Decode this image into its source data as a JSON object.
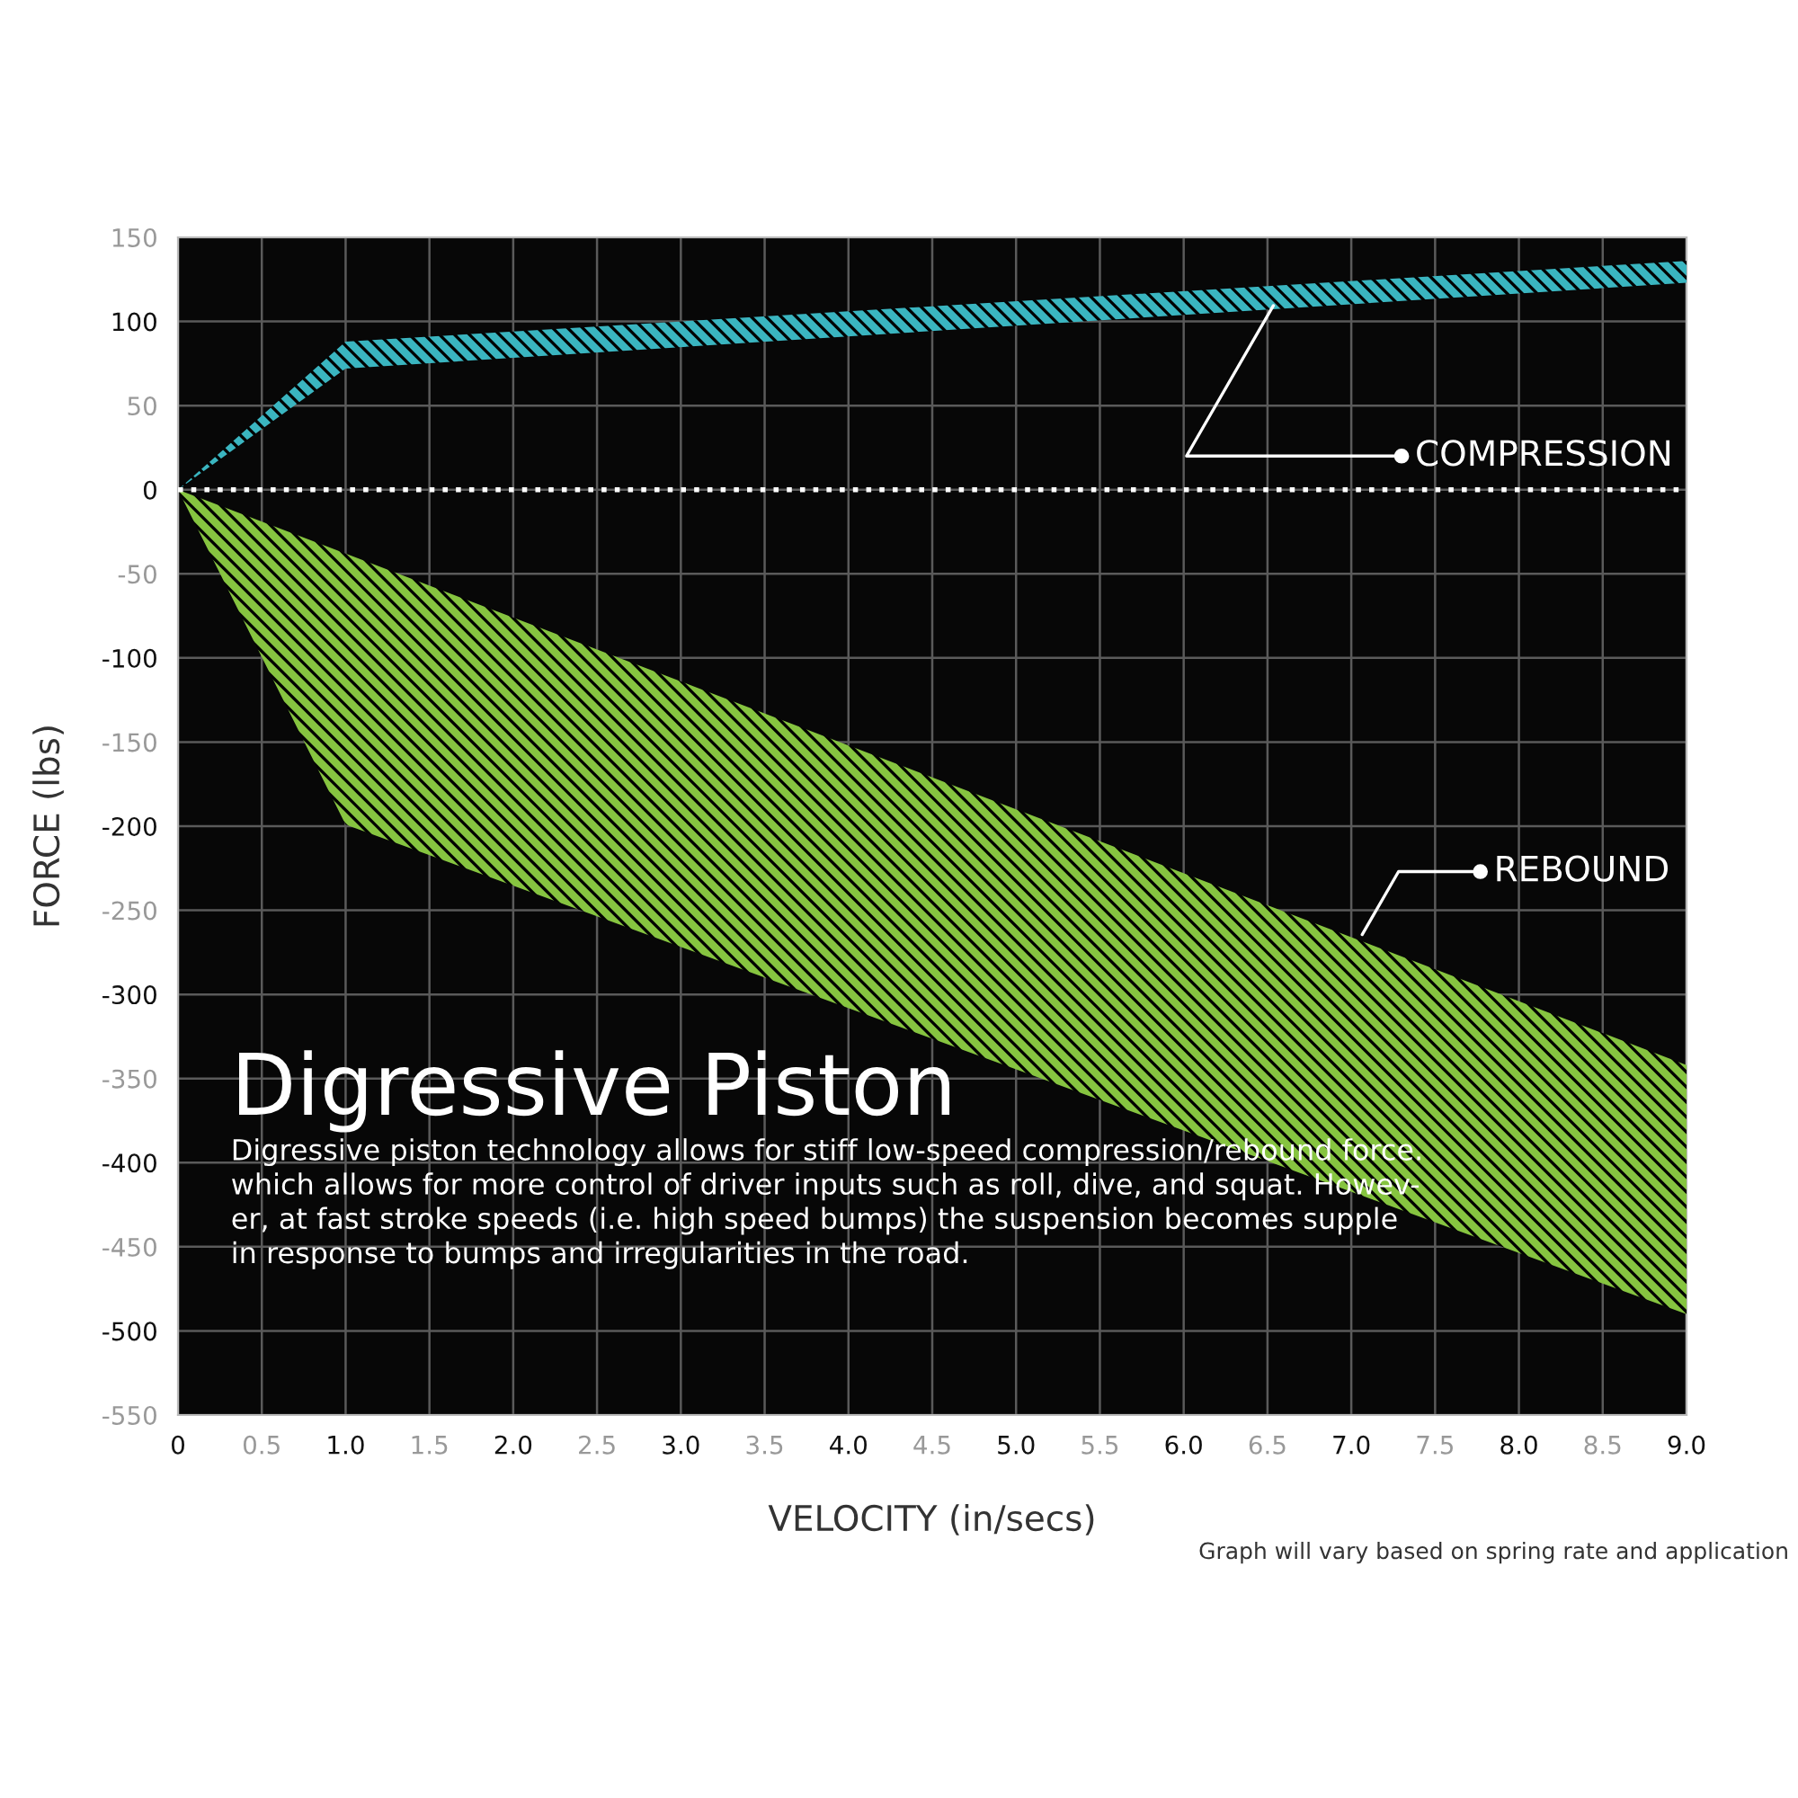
{
  "chart_data": {
    "type": "area",
    "title": "Digressive Piston",
    "xlabel": "VELOCITY (in/secs)",
    "ylabel": "FORCE (lbs)",
    "series": [
      {
        "color": "#3ab5c0",
        "x": [
          0,
          1,
          9,
          9,
          1,
          0
        ],
        "values": [
          0,
          88,
          136,
          123,
          72,
          0
        ]
      },
      {
        "color": "#86c440",
        "x": [
          0,
          1,
          9,
          9,
          1,
          0
        ],
        "values": [
          0,
          -38,
          -342,
          -490,
          -199,
          0
        ]
      }
    ],
    "xlim": [
      0,
      9
    ],
    "ylim": [
      -550,
      150
    ],
    "xticks": [
      0,
      0.5,
      {
        "value": 1,
        "label": "1.0"
      },
      1.5,
      {
        "value": 2,
        "label": "2.0"
      },
      2.5,
      {
        "value": 3,
        "label": "3.0"
      },
      3.5,
      {
        "value": 4,
        "label": "4.0"
      },
      4.5,
      {
        "value": 5,
        "label": "5.0"
      },
      5.5,
      {
        "value": 6,
        "label": "6.0"
      },
      6.5,
      {
        "value": 7,
        "label": "7.0"
      },
      7.5,
      {
        "value": 8,
        "label": "8.0"
      },
      8.5,
      {
        "value": 9,
        "label": "9.0"
      }
    ],
    "yticks": [
      -550,
      -500,
      -450,
      -400,
      -350,
      -300,
      -250,
      -200,
      -150,
      -100,
      -50,
      0,
      50,
      100,
      150
    ],
    "grid": true,
    "ref_lines": [
      {
        "axis": "y",
        "value": 0,
        "color": "#ffffff",
        "line_style": "dotted"
      }
    ],
    "annotations": [
      {
        "text": "COMPRESSION",
        "x": 6.55,
        "y": 112
      },
      {
        "text": "REBOUND",
        "x": 7.05,
        "y": -267
      },
      "Digressive piston technology allows for stiff low-speed compression/rebound force.\nwhich allows for more control of driver inputs such as roll, dive, and squat. Howev-\ner, at fast stroke speeds (i.e. high speed bumps) the suspension becomes supple\nin response to bumps and irregularities in the road.",
      "Graph will vary based on spring rate and application"
    ]
  }
}
